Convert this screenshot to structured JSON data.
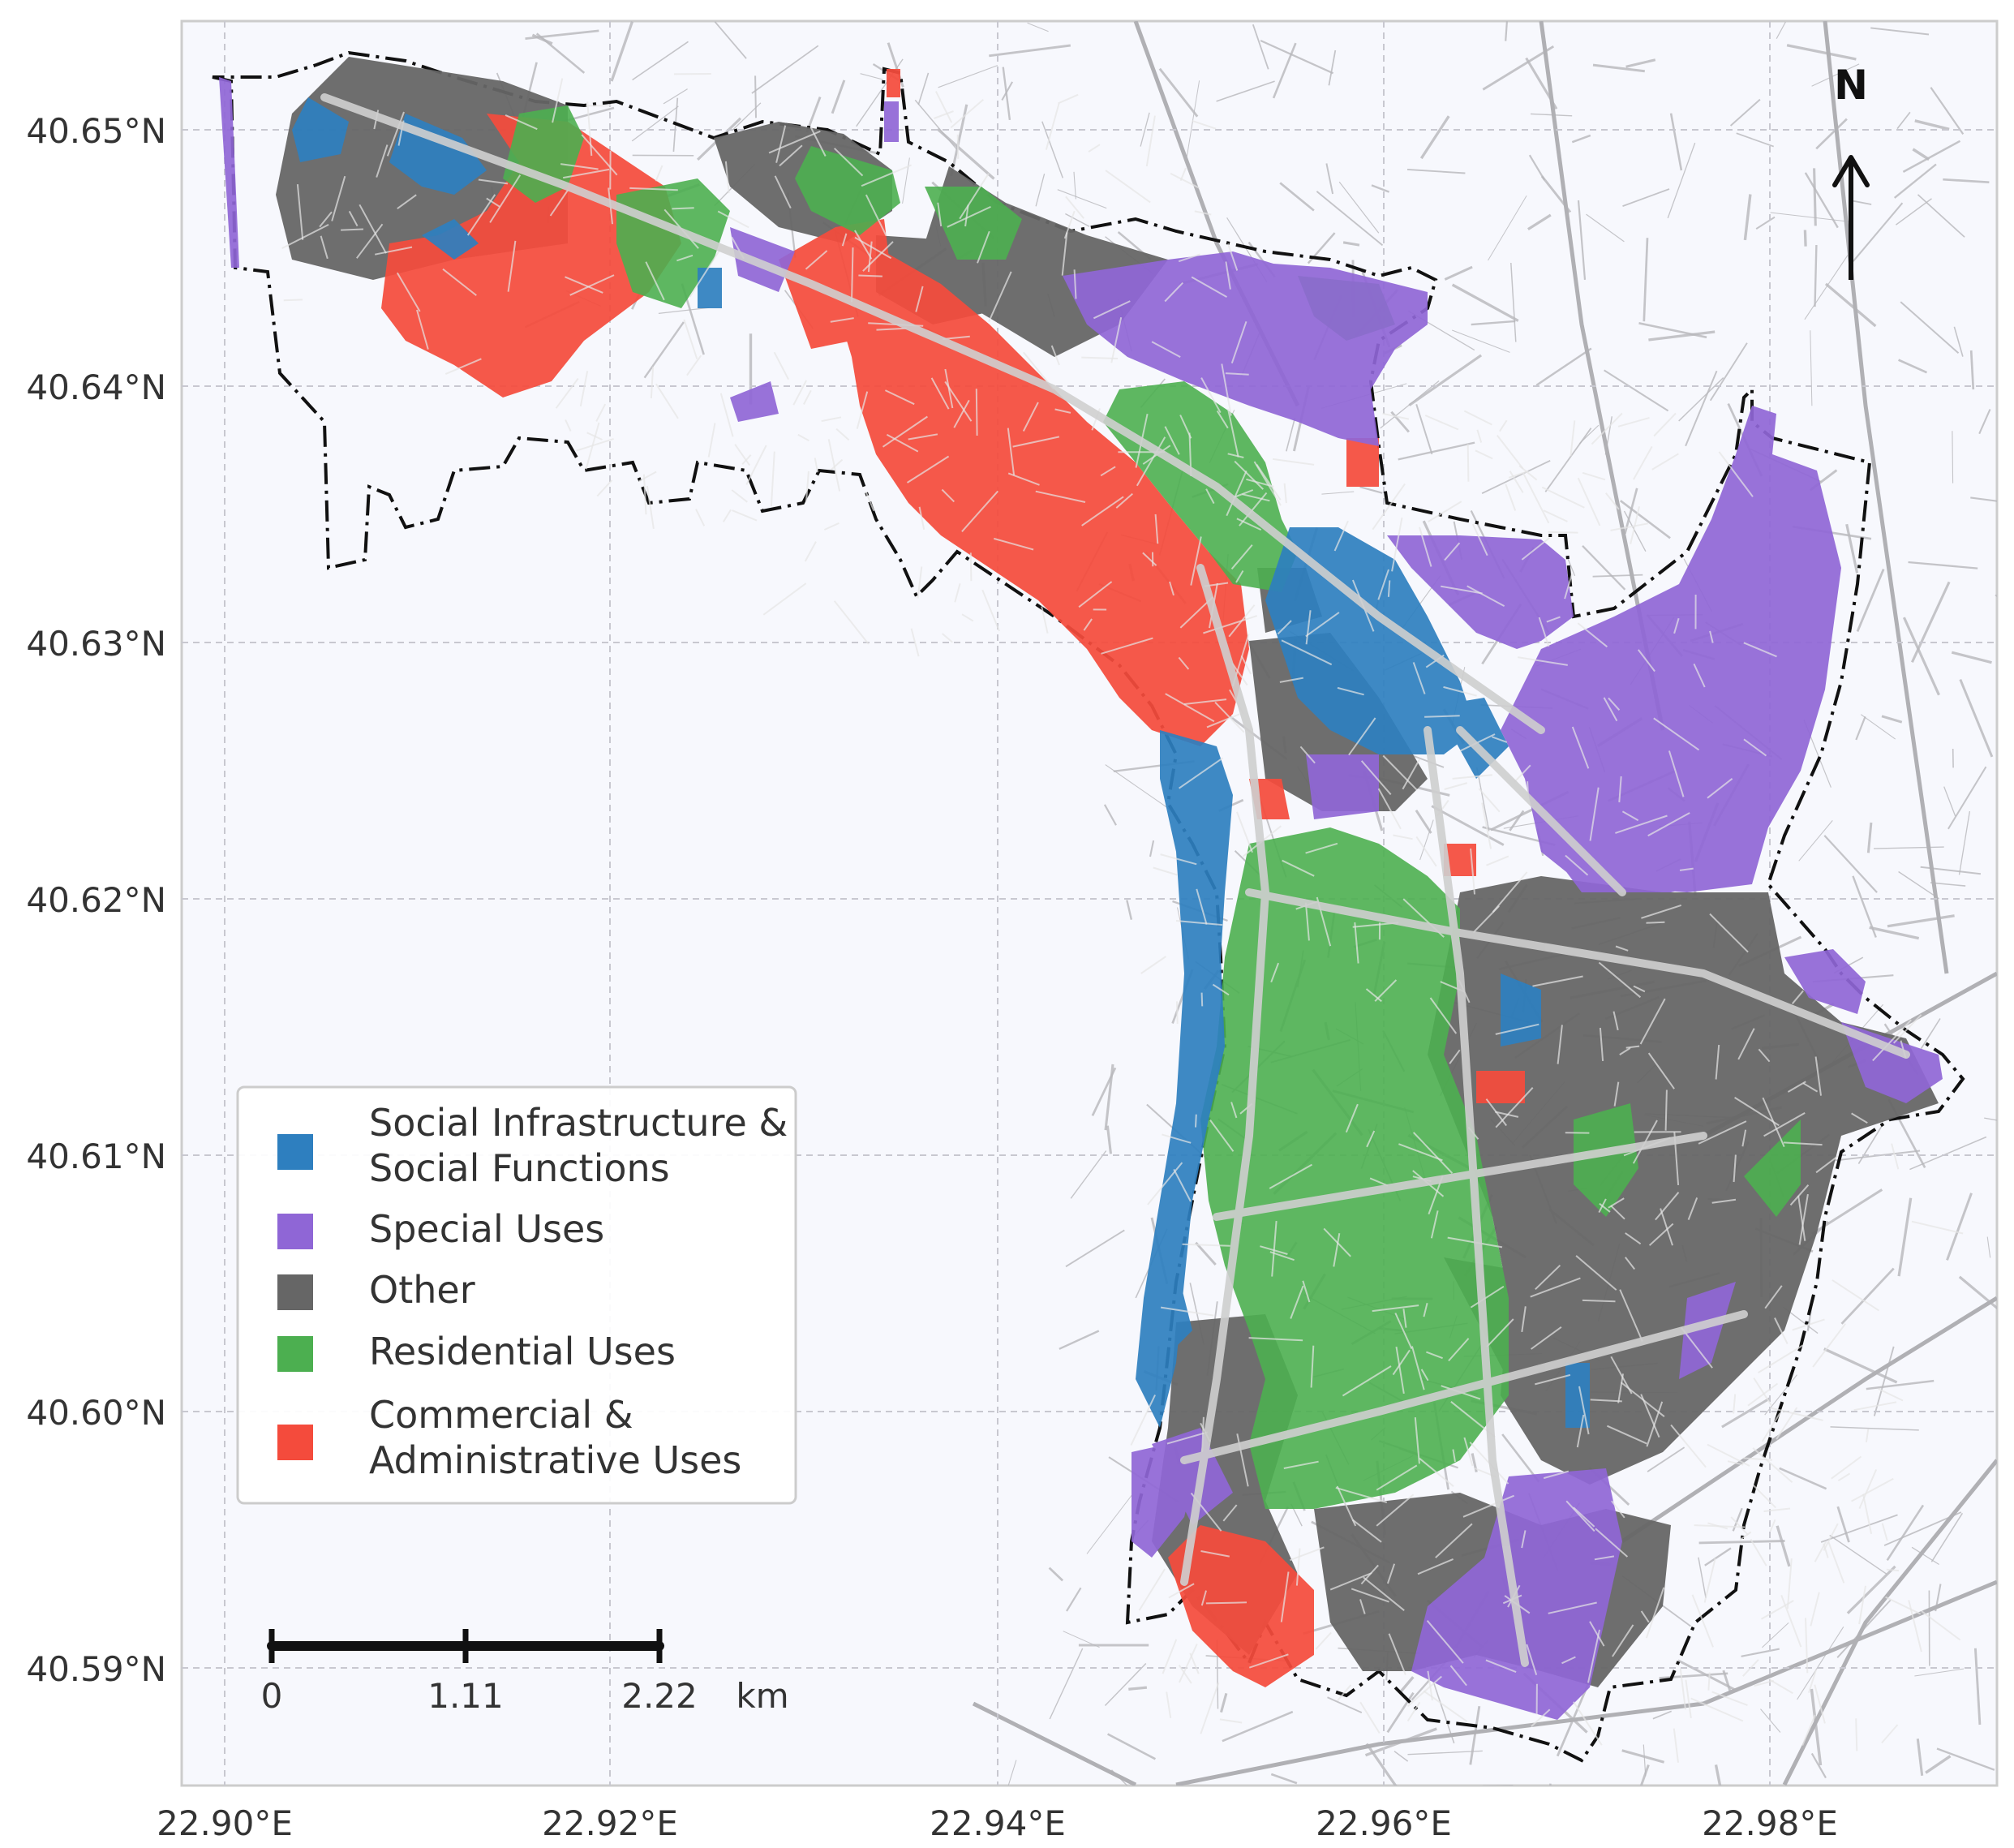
{
  "map": {
    "x_ticks": [
      "22.90°E",
      "22.92°E",
      "22.94°E",
      "22.96°E",
      "22.98°E"
    ],
    "y_ticks": [
      "40.65°N",
      "40.64°N",
      "40.63°N",
      "40.62°N",
      "40.61°N",
      "40.60°N",
      "40.59°N"
    ],
    "north_label": "N",
    "grid": true,
    "legend_placement": "lower-left"
  },
  "legend": {
    "items": [
      {
        "line1": "Social Infrastructure &",
        "line2": "Social Functions",
        "color": "#2e7fbf"
      },
      {
        "line1": "Special Uses",
        "line2": "",
        "color": "#8f66d6"
      },
      {
        "line1": "Other",
        "line2": "",
        "color": "#666666"
      },
      {
        "line1": "Residential Uses",
        "line2": "",
        "color": "#4caf50"
      },
      {
        "line1": "Commercial &",
        "line2": "Administrative Uses",
        "color": "#f44b3c"
      }
    ]
  },
  "scale_bar": {
    "labels": [
      "0",
      "1.11",
      "2.22"
    ],
    "unit": "km"
  }
}
